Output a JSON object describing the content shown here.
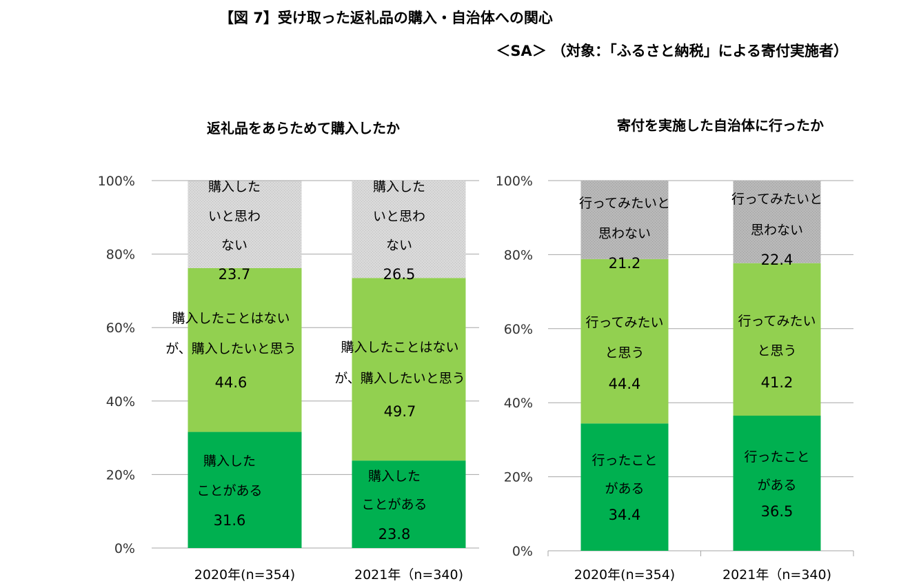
{
  "header": {
    "title": "【図 7】受け取った返礼品の購入・自治体への関心",
    "subtitle": "＜SA＞ （対象：「ふるさと納税」による寄付実施者）"
  },
  "chart_data": [
    {
      "type": "bar",
      "stacked": true,
      "title": "返礼品をあらためて購入したか",
      "categories": [
        "2020年(n=354)",
        "2021年（n=340)"
      ],
      "ylim": [
        0,
        100
      ],
      "y_ticks": [
        "0%",
        "20%",
        "40%",
        "60%",
        "80%",
        "100%"
      ],
      "grid": true,
      "series": [
        {
          "name": "購入したことがある",
          "label_lines": [
            "購入した",
            "ことがある"
          ],
          "values": [
            31.6,
            23.8
          ],
          "color": "#00b050"
        },
        {
          "name": "購入したことはないが、購入したいと思う",
          "label_lines": [
            "購入したことはない",
            "が、購入したいと思う"
          ],
          "values": [
            44.6,
            49.7
          ],
          "color": "#92d050"
        },
        {
          "name": "購入したいと思わない",
          "label_lines": [
            "購入した",
            "いと思わ",
            "ない"
          ],
          "values": [
            23.7,
            26.5
          ],
          "color": "#d9d9d9"
        }
      ]
    },
    {
      "type": "bar",
      "stacked": true,
      "title": "寄付を実施した自治体に行ったか",
      "categories": [
        "2020年(n=354)",
        "2021年（n=340)"
      ],
      "ylim": [
        0,
        100
      ],
      "y_ticks": [
        "0%",
        "20%",
        "40%",
        "60%",
        "80%",
        "100%"
      ],
      "grid": true,
      "series": [
        {
          "name": "行ったことがある",
          "label_lines": [
            "行ったこと",
            "がある"
          ],
          "values": [
            34.4,
            36.5
          ],
          "color": "#00b050"
        },
        {
          "name": "行ってみたいと思う",
          "label_lines": [
            "行ってみたい",
            "と思う"
          ],
          "values": [
            44.4,
            41.2
          ],
          "color": "#92d050"
        },
        {
          "name": "行ってみたいと思わない",
          "label_lines": [
            "行ってみたいと",
            "思わない"
          ],
          "values": [
            21.2,
            22.4
          ],
          "color": "#b8b8b8"
        }
      ]
    }
  ]
}
